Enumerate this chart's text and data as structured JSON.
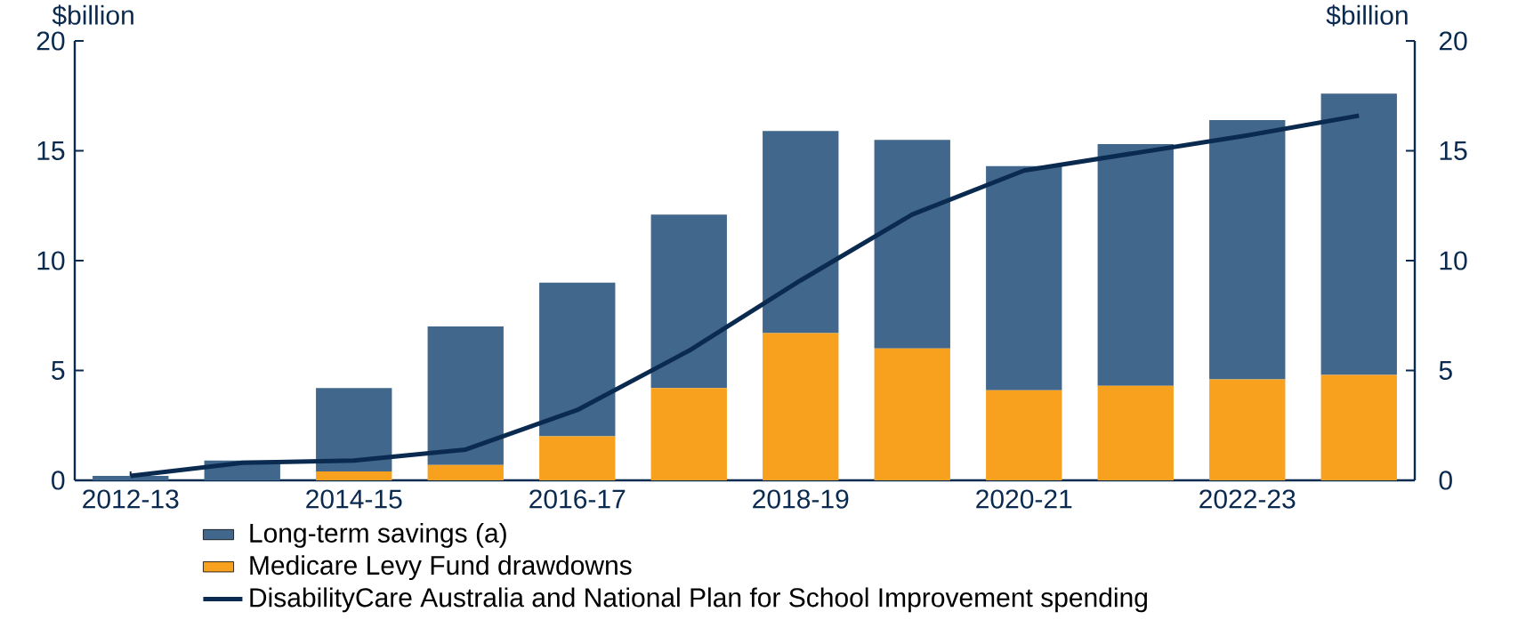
{
  "chart_data": {
    "type": "bar",
    "stacked": true,
    "ylabel": "$billion",
    "y2label": "$billion",
    "categories": [
      "2012-13",
      null,
      "2014-15",
      null,
      "2016-17",
      null,
      "2018-19",
      null,
      "2020-21",
      null,
      "2022-23",
      null
    ],
    "series": [
      {
        "name": "Medicare Levy Fund drawdowns",
        "color": "#f7a11f",
        "values": [
          0,
          0,
          0.4,
          0.7,
          2.0,
          4.2,
          6.7,
          6.0,
          4.1,
          4.3,
          4.6,
          4.8
        ]
      },
      {
        "name": "Long-term savings (a)",
        "color": "#41678c",
        "values": [
          0.2,
          0.9,
          3.8,
          6.3,
          7.0,
          7.9,
          9.2,
          9.5,
          10.2,
          11.0,
          11.8,
          12.8
        ]
      },
      {
        "name": "DisabilityCare Australia and National Plan for School Improvement spending",
        "type": "line",
        "color": "#0b2a4f",
        "values": [
          0.2,
          0.8,
          0.9,
          1.4,
          3.2,
          5.9,
          9.1,
          12.1,
          14.1,
          14.9,
          15.7,
          16.6
        ]
      }
    ],
    "ylim": [
      0,
      20
    ],
    "yticks": [
      0,
      5,
      10,
      15,
      20
    ],
    "y2lim": [
      0,
      20
    ],
    "y2ticks": [
      0,
      5,
      10,
      15,
      20
    ],
    "grid": false,
    "legend": "bottom",
    "marker": "none",
    "line_style": "solid"
  }
}
